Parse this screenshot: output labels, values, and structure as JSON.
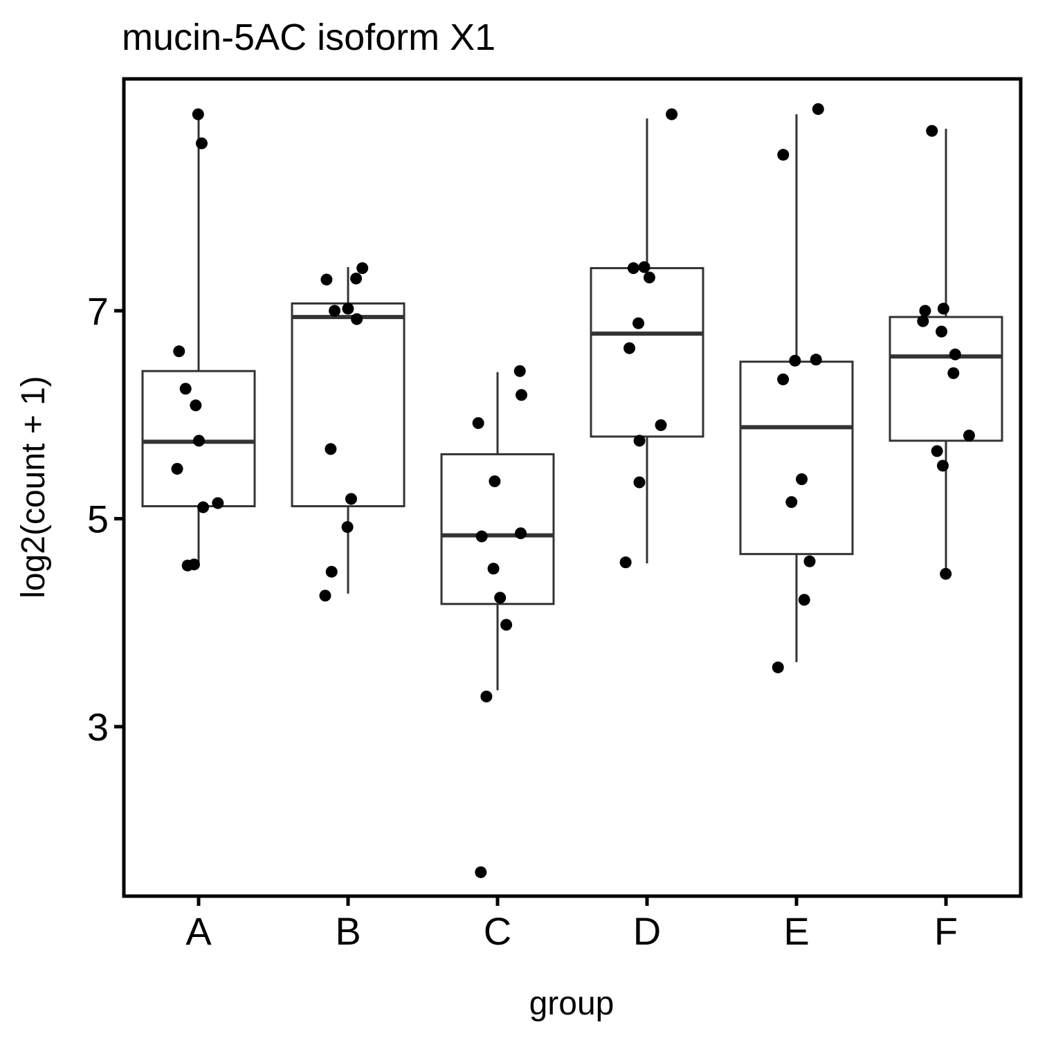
{
  "chart_data": {
    "type": "box",
    "title": "mucin-5AC isoform X1",
    "xlabel": "group",
    "ylabel": "log2(count + 1)",
    "categories": [
      "A",
      "B",
      "C",
      "D",
      "E",
      "F"
    ],
    "y_ticks": [
      3,
      5,
      7
    ],
    "ylim": [
      1.37,
      9.23
    ],
    "grid": false,
    "legend": "none",
    "boxes": [
      {
        "group": "A",
        "whisker_low": 4.55,
        "q1": 5.12,
        "median": 5.74,
        "q3": 6.42,
        "whisker_high": 8.85
      },
      {
        "group": "B",
        "whisker_low": 4.28,
        "q1": 5.12,
        "median": 6.94,
        "q3": 7.07,
        "whisker_high": 7.42
      },
      {
        "group": "C",
        "whisker_low": 3.35,
        "q1": 4.18,
        "median": 4.84,
        "q3": 5.62,
        "whisker_high": 6.41
      },
      {
        "group": "D",
        "whisker_low": 4.57,
        "q1": 5.79,
        "median": 6.78,
        "q3": 7.41,
        "whisker_high": 8.85
      },
      {
        "group": "E",
        "whisker_low": 3.62,
        "q1": 4.66,
        "median": 5.88,
        "q3": 6.51,
        "whisker_high": 8.89
      },
      {
        "group": "F",
        "whisker_low": 4.47,
        "q1": 5.75,
        "median": 6.56,
        "q3": 6.94,
        "whisker_high": 8.75
      }
    ],
    "points": [
      {
        "group": "A",
        "values": [
          8.89,
          8.61,
          6.61,
          6.25,
          6.09,
          5.75,
          5.48,
          5.15,
          5.11,
          4.56,
          4.55
        ]
      },
      {
        "group": "B",
        "values": [
          7.41,
          7.31,
          7.3,
          7.02,
          7.0,
          6.92,
          5.67,
          5.19,
          4.92,
          4.49,
          4.26
        ]
      },
      {
        "group": "C",
        "values": [
          6.42,
          6.19,
          5.92,
          5.36,
          4.86,
          4.83,
          4.52,
          4.24,
          3.98,
          3.29,
          1.6
        ]
      },
      {
        "group": "D",
        "values": [
          8.89,
          7.42,
          7.41,
          7.32,
          6.88,
          6.64,
          5.9,
          5.75,
          5.35,
          4.58
        ]
      },
      {
        "group": "E",
        "values": [
          8.94,
          8.5,
          6.53,
          6.52,
          6.34,
          5.38,
          5.16,
          4.59,
          4.22,
          3.57
        ]
      },
      {
        "group": "F",
        "values": [
          8.73,
          7.02,
          7.0,
          6.9,
          6.8,
          6.58,
          6.4,
          5.8,
          5.65,
          5.51,
          4.47
        ]
      }
    ]
  }
}
